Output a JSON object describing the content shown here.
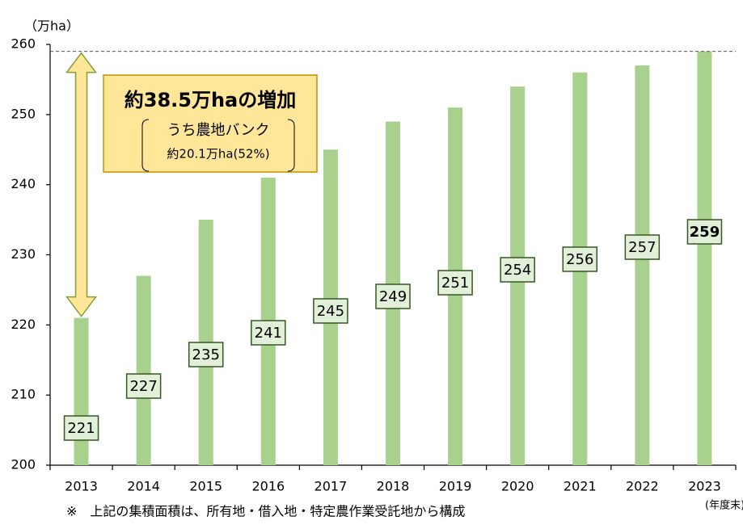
{
  "chart_data": {
    "type": "bar",
    "unit_label": "（万ha）",
    "categories": [
      "2013",
      "2014",
      "2015",
      "2016",
      "2017",
      "2018",
      "2019",
      "2020",
      "2021",
      "2022",
      "2023"
    ],
    "values": [
      221,
      227,
      235,
      241,
      245,
      249,
      251,
      254,
      256,
      257,
      259
    ],
    "color": "#a9d18e",
    "ylim": [
      200,
      260
    ],
    "yticks": [
      200,
      210,
      220,
      230,
      240,
      250,
      260
    ],
    "x_axis_label": "(年度末)",
    "annotation": {
      "headline": "約38.5万haの増加",
      "sub1": "うち農地バンク",
      "sub2": "約20.1万ha(52%)"
    },
    "footnote": "※　上記の集積面積は、所有地・借入地・特定農作業受託地から構成"
  }
}
